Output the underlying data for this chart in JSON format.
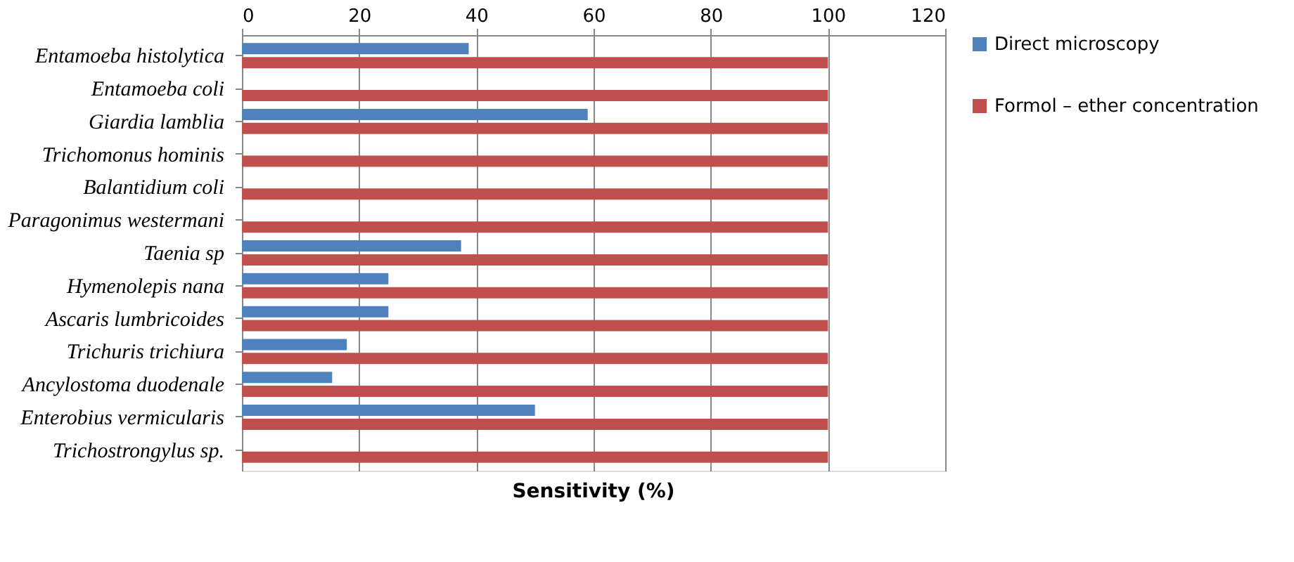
{
  "chart_data": {
    "type": "bar",
    "orientation": "horizontal",
    "xlabel": "Sensitivity (%)",
    "categories": [
      "Entamoeba histolytica",
      "Entamoeba coli",
      "Giardia lamblia",
      "Trichomonus hominis",
      "Balantidium coli",
      "Paragonimus westermani",
      "Taenia sp",
      "Hymenolepis nana",
      "Ascaris lumbricoides",
      "Trichuris trichiura",
      "Ancylostoma duodenale",
      "Enterobius vermicularis",
      "Trichostrongylus sp."
    ],
    "series": [
      {
        "name": "Direct microscopy",
        "color": "#4f81bd",
        "values": [
          38.7,
          0,
          59,
          0,
          0,
          0,
          37.4,
          25,
          25,
          17.9,
          15.4,
          50,
          0
        ]
      },
      {
        "name": "Formol – ether concentration",
        "color": "#c0504d",
        "values": [
          100,
          100,
          100,
          100,
          100,
          100,
          100,
          100,
          100,
          100,
          100,
          100,
          100
        ]
      }
    ],
    "xlim": [
      0,
      120
    ],
    "xticks": [
      0,
      20,
      40,
      60,
      80,
      100,
      120
    ],
    "grid": "x",
    "legend": "right"
  }
}
